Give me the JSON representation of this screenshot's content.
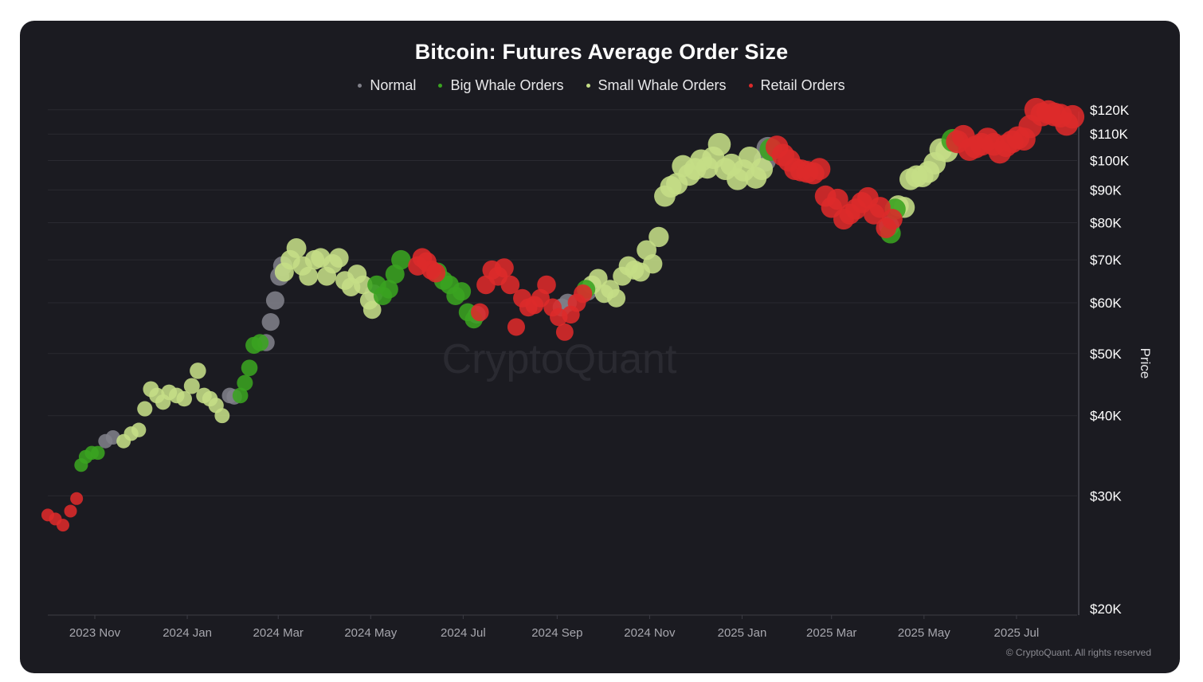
{
  "title": "Bitcoin: Futures Average Order Size",
  "legend": [
    {
      "label": "Normal",
      "color": "#808089"
    },
    {
      "label": "Big Whale Orders",
      "color": "#3aa320"
    },
    {
      "label": "Small Whale Orders",
      "color": "#c5de86"
    },
    {
      "label": "Retail Orders",
      "color": "#dd2a2a"
    }
  ],
  "watermark": "CryptoQuant",
  "copyright": "© CryptoQuant. All rights reserved",
  "chart_data": {
    "type": "scatter",
    "title": "Bitcoin: Futures Average Order Size",
    "ylabel": "Price",
    "xlabel": "",
    "y_scale": "log",
    "ylim": [
      20000,
      122000
    ],
    "xlim": [
      "2023-10-01",
      "2025-08-10"
    ],
    "x_ticks": [
      "2023 Nov",
      "2024 Jan",
      "2024 Mar",
      "2024 May",
      "2024 Jul",
      "2024 Sep",
      "2024 Nov",
      "2025 Jan",
      "2025 Mar",
      "2025 May",
      "2025 Jul"
    ],
    "x_tick_dates": [
      "2023-11-01",
      "2024-01-01",
      "2024-03-01",
      "2024-05-01",
      "2024-07-01",
      "2024-09-01",
      "2024-11-01",
      "2025-01-01",
      "2025-03-01",
      "2025-05-01",
      "2025-07-01"
    ],
    "y_ticks": [
      20000,
      30000,
      40000,
      50000,
      60000,
      70000,
      80000,
      90000,
      100000,
      110000,
      120000
    ],
    "y_tick_labels": [
      "$20K",
      "$30K",
      "$40K",
      "$50K",
      "$60K",
      "$70K",
      "$80K",
      "$90K",
      "$100K",
      "$110K",
      "$120K"
    ],
    "grid": true,
    "legend_position": "top-center",
    "series": [
      {
        "name": "Retail Orders",
        "color": "#dd2a2a",
        "points": [
          [
            "2023-10-01",
            28000
          ],
          [
            "2023-10-06",
            27600
          ],
          [
            "2023-10-11",
            27000
          ],
          [
            "2023-10-16",
            28400
          ],
          [
            "2023-10-20",
            29700
          ],
          [
            "2024-06-01",
            68500
          ],
          [
            "2024-06-04",
            70500
          ],
          [
            "2024-06-07",
            69500
          ],
          [
            "2024-06-10",
            67500
          ],
          [
            "2024-06-13",
            66800
          ],
          [
            "2024-07-12",
            58000
          ],
          [
            "2024-07-16",
            64000
          ],
          [
            "2024-07-20",
            67500
          ],
          [
            "2024-07-24",
            66000
          ],
          [
            "2024-07-28",
            68000
          ],
          [
            "2024-08-01",
            64000
          ],
          [
            "2024-08-05",
            55000
          ],
          [
            "2024-08-09",
            61000
          ],
          [
            "2024-08-13",
            59000
          ],
          [
            "2024-08-17",
            59500
          ],
          [
            "2024-08-21",
            61000
          ],
          [
            "2024-08-25",
            64000
          ],
          [
            "2024-08-29",
            59000
          ],
          [
            "2024-09-02",
            57000
          ],
          [
            "2024-09-06",
            54000
          ],
          [
            "2024-09-10",
            57500
          ],
          [
            "2024-09-14",
            60000
          ],
          [
            "2024-09-18",
            62000
          ],
          [
            "2025-01-24",
            105000
          ],
          [
            "2025-01-28",
            102000
          ],
          [
            "2025-02-01",
            100000
          ],
          [
            "2025-02-05",
            97000
          ],
          [
            "2025-02-09",
            96500
          ],
          [
            "2025-02-13",
            96000
          ],
          [
            "2025-02-17",
            95500
          ],
          [
            "2025-02-21",
            97000
          ],
          [
            "2025-02-25",
            88000
          ],
          [
            "2025-03-01",
            84500
          ],
          [
            "2025-03-05",
            87000
          ],
          [
            "2025-03-09",
            81000
          ],
          [
            "2025-03-13",
            82500
          ],
          [
            "2025-03-17",
            84000
          ],
          [
            "2025-03-21",
            86000
          ],
          [
            "2025-03-25",
            87500
          ],
          [
            "2025-03-29",
            82500
          ],
          [
            "2025-04-02",
            84500
          ],
          [
            "2025-04-06",
            78500
          ],
          [
            "2025-04-10",
            81000
          ],
          [
            "2025-05-23",
            107000
          ],
          [
            "2025-05-27",
            109000
          ],
          [
            "2025-05-31",
            104000
          ],
          [
            "2025-06-04",
            105000
          ],
          [
            "2025-06-08",
            106000
          ],
          [
            "2025-06-12",
            108000
          ],
          [
            "2025-06-16",
            106000
          ],
          [
            "2025-06-20",
            103000
          ],
          [
            "2025-06-24",
            105500
          ],
          [
            "2025-06-28",
            107000
          ],
          [
            "2025-07-02",
            108500
          ],
          [
            "2025-07-06",
            108000
          ],
          [
            "2025-07-10",
            113000
          ],
          [
            "2025-07-14",
            120000
          ],
          [
            "2025-07-18",
            118000
          ],
          [
            "2025-07-22",
            119000
          ],
          [
            "2025-07-26",
            118000
          ],
          [
            "2025-07-30",
            117500
          ],
          [
            "2025-08-03",
            114000
          ],
          [
            "2025-08-07",
            117000
          ]
        ]
      },
      {
        "name": "Big Whale Orders",
        "color": "#3aa320",
        "points": [
          [
            "2023-10-23",
            33500
          ],
          [
            "2023-10-26",
            34500
          ],
          [
            "2023-10-30",
            35000
          ],
          [
            "2023-11-03",
            35000
          ],
          [
            "2024-02-05",
            43000
          ],
          [
            "2024-02-08",
            45000
          ],
          [
            "2024-02-11",
            47500
          ],
          [
            "2024-02-14",
            51500
          ],
          [
            "2024-02-18",
            52000
          ],
          [
            "2024-05-05",
            64000
          ],
          [
            "2024-05-09",
            61500
          ],
          [
            "2024-05-13",
            63000
          ],
          [
            "2024-05-17",
            66500
          ],
          [
            "2024-05-21",
            70000
          ],
          [
            "2024-06-14",
            67000
          ],
          [
            "2024-06-18",
            65000
          ],
          [
            "2024-06-22",
            64000
          ],
          [
            "2024-06-26",
            61500
          ],
          [
            "2024-06-30",
            62500
          ],
          [
            "2024-07-04",
            58000
          ],
          [
            "2024-07-08",
            56500
          ],
          [
            "2024-09-20",
            63000
          ],
          [
            "2025-01-20",
            104000
          ],
          [
            "2025-04-09",
            77000
          ],
          [
            "2025-04-12",
            84000
          ],
          [
            "2025-05-20",
            107500
          ]
        ]
      },
      {
        "name": "Small Whale Orders",
        "color": "#c5de86",
        "points": [
          [
            "2023-11-20",
            36500
          ],
          [
            "2023-11-25",
            37500
          ],
          [
            "2023-11-30",
            38000
          ],
          [
            "2023-12-04",
            41000
          ],
          [
            "2023-12-08",
            44000
          ],
          [
            "2023-12-12",
            43000
          ],
          [
            "2023-12-16",
            42000
          ],
          [
            "2023-12-20",
            43500
          ],
          [
            "2023-12-25",
            43000
          ],
          [
            "2023-12-30",
            42500
          ],
          [
            "2024-01-04",
            44500
          ],
          [
            "2024-01-08",
            47000
          ],
          [
            "2024-01-12",
            43000
          ],
          [
            "2024-01-16",
            42500
          ],
          [
            "2024-01-20",
            41500
          ],
          [
            "2024-01-24",
            40000
          ],
          [
            "2024-03-05",
            67000
          ],
          [
            "2024-03-09",
            70000
          ],
          [
            "2024-03-13",
            73000
          ],
          [
            "2024-03-17",
            68500
          ],
          [
            "2024-03-21",
            66000
          ],
          [
            "2024-03-25",
            70000
          ],
          [
            "2024-03-29",
            70500
          ],
          [
            "2024-04-02",
            66000
          ],
          [
            "2024-04-06",
            69000
          ],
          [
            "2024-04-10",
            70500
          ],
          [
            "2024-04-14",
            65000
          ],
          [
            "2024-04-18",
            63500
          ],
          [
            "2024-04-22",
            66500
          ],
          [
            "2024-04-26",
            64000
          ],
          [
            "2024-04-30",
            60500
          ],
          [
            "2024-05-02",
            58500
          ],
          [
            "2024-09-24",
            64000
          ],
          [
            "2024-09-28",
            65500
          ],
          [
            "2024-10-02",
            62000
          ],
          [
            "2024-10-06",
            63000
          ],
          [
            "2024-10-10",
            61000
          ],
          [
            "2024-10-14",
            66000
          ],
          [
            "2024-10-18",
            68500
          ],
          [
            "2024-10-22",
            67500
          ],
          [
            "2024-10-26",
            67000
          ],
          [
            "2024-10-30",
            72500
          ],
          [
            "2024-11-03",
            69000
          ],
          [
            "2024-11-07",
            76000
          ],
          [
            "2024-11-11",
            88000
          ],
          [
            "2024-11-15",
            91000
          ],
          [
            "2024-11-19",
            92000
          ],
          [
            "2024-11-23",
            98000
          ],
          [
            "2024-11-27",
            95000
          ],
          [
            "2024-12-01",
            97000
          ],
          [
            "2024-12-05",
            100000
          ],
          [
            "2024-12-09",
            97500
          ],
          [
            "2024-12-13",
            101000
          ],
          [
            "2024-12-17",
            106000
          ],
          [
            "2024-12-21",
            97000
          ],
          [
            "2024-12-25",
            98500
          ],
          [
            "2024-12-29",
            93500
          ],
          [
            "2025-01-02",
            96500
          ],
          [
            "2025-01-06",
            101000
          ],
          [
            "2025-01-10",
            94000
          ],
          [
            "2025-01-14",
            97000
          ],
          [
            "2025-04-14",
            85000
          ],
          [
            "2025-04-18",
            84500
          ],
          [
            "2025-04-22",
            93500
          ],
          [
            "2025-04-26",
            94500
          ],
          [
            "2025-04-30",
            94500
          ],
          [
            "2025-05-04",
            96000
          ],
          [
            "2025-05-08",
            99000
          ],
          [
            "2025-05-12",
            104000
          ],
          [
            "2025-05-16",
            103500
          ]
        ]
      },
      {
        "name": "Normal",
        "color": "#808089",
        "points": [
          [
            "2023-11-08",
            36500
          ],
          [
            "2023-11-13",
            37000
          ],
          [
            "2024-01-29",
            43000
          ],
          [
            "2024-02-01",
            42800
          ],
          [
            "2024-02-22",
            52000
          ],
          [
            "2024-02-25",
            56000
          ],
          [
            "2024-02-28",
            60500
          ],
          [
            "2024-03-02",
            66000
          ],
          [
            "2024-03-04",
            68500
          ],
          [
            "2024-05-03",
            62000
          ],
          [
            "2024-07-10",
            57500
          ],
          [
            "2024-09-04",
            59000
          ],
          [
            "2024-09-08",
            60000
          ],
          [
            "2024-09-21",
            62500
          ],
          [
            "2025-01-16",
            100000
          ],
          [
            "2025-01-18",
            104500
          ],
          [
            "2025-04-08",
            79000
          ]
        ]
      }
    ]
  }
}
